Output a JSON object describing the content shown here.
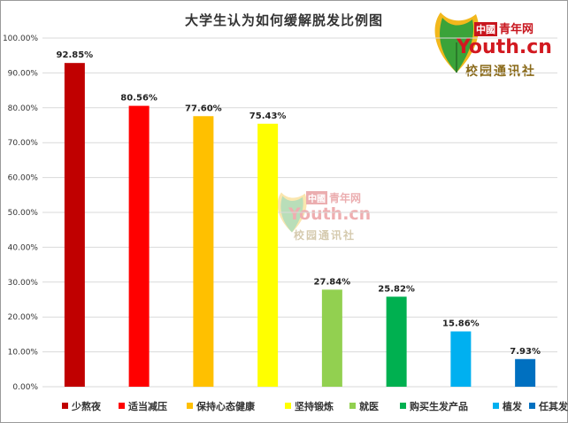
{
  "chart_data": {
    "type": "bar",
    "title": "大学生认为如何缓解脱发比例图",
    "categories": [
      "少熬夜",
      "适当减压",
      "保持心态健康",
      "坚持锻炼",
      "就医",
      "购买生发产品",
      "植发",
      "任其发展"
    ],
    "values": [
      92.85,
      80.56,
      77.6,
      75.43,
      27.84,
      25.82,
      15.86,
      7.93
    ],
    "value_labels": [
      "92.85%",
      "80.56%",
      "77.60%",
      "75.43%",
      "27.84%",
      "25.82%",
      "15.86%",
      "7.93%"
    ],
    "colors": [
      "#c00000",
      "#ff0000",
      "#ffc000",
      "#ffff00",
      "#92d050",
      "#00b050",
      "#00b0f0",
      "#0070c0"
    ],
    "yticks": [
      "0.00%",
      "10.00%",
      "20.00%",
      "30.00%",
      "40.00%",
      "50.00%",
      "60.00%",
      "70.00%",
      "80.00%",
      "90.00%",
      "100.00%"
    ],
    "ylim": [
      0,
      100
    ],
    "xlabel": "",
    "ylabel": "",
    "grid": true,
    "legend_position": "bottom"
  },
  "logo": {
    "cn_box": "中國",
    "cn_text": "青年网",
    "youth": "Youth.cn",
    "sub": "校园通讯社"
  },
  "watermark": {
    "cn_box": "中國",
    "cn_text": "青年网",
    "youth": "Youth.cn",
    "sub": "校园通讯社"
  }
}
